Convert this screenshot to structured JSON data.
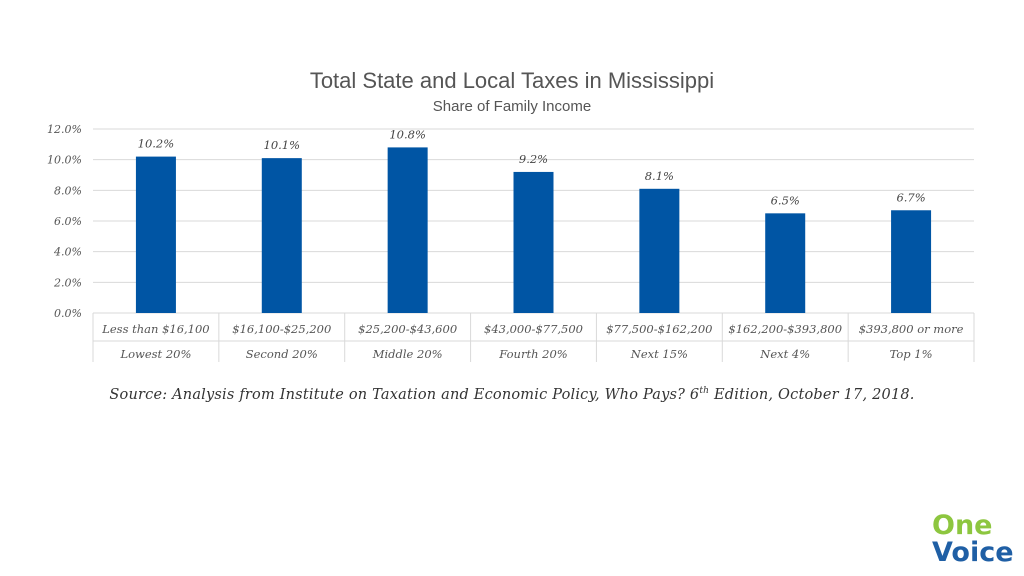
{
  "chart_data": {
    "type": "bar",
    "title": "Total State and Local Taxes in Mississippi",
    "subtitle": "Share of Family Income",
    "categories": [
      "Less than $16,100",
      "$16,100-$25,200",
      "$25,200-$43,600",
      "$43,000-$77,500",
      "$77,500-$162,200",
      "$162,200-$393,800",
      "$393,800 or more"
    ],
    "groups": [
      "Lowest 20%",
      "Second 20%",
      "Middle 20%",
      "Fourth 20%",
      "Next 15%",
      "Next 4%",
      "Top 1%"
    ],
    "values": [
      10.2,
      10.1,
      10.8,
      9.2,
      8.1,
      6.5,
      6.7
    ],
    "data_labels": [
      "10.2%",
      "10.1%",
      "10.8%",
      "9.2%",
      "8.1%",
      "6.5%",
      "6.7%"
    ],
    "ylim": [
      0,
      12
    ],
    "yticks": [
      "0.0%",
      "2.0%",
      "4.0%",
      "6.0%",
      "8.0%",
      "10.0%",
      "12.0%"
    ],
    "grid": true,
    "bar_color": "#0055a4"
  },
  "source": {
    "prefix": "Source: Analysis from Institute on Taxation and Economic Policy, Who Pays? 6",
    "sup": "th",
    "suffix": " Edition, October 17, 2018."
  },
  "logo": {
    "line1": "One",
    "line2": "Voice",
    "color1": "#8dc63f",
    "color2": "#1f5fa5"
  }
}
